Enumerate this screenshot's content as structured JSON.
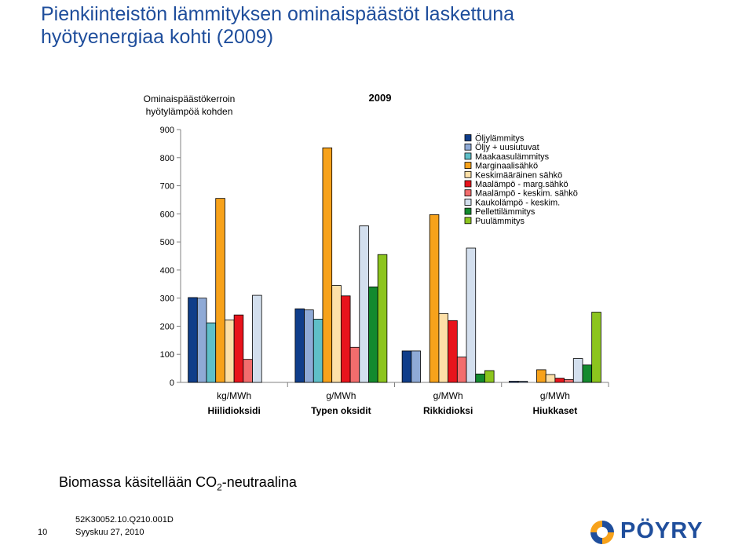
{
  "slide": {
    "title_line1": "Pienkiinteistön lämmityksen ominaispäästöt laskettuna",
    "title_line2": "hyötyenergiaa kohti (2009)",
    "note_prefix": "Biomassa käsitellään CO",
    "note_sub": "2",
    "note_suffix": "-neutraalina",
    "footer_code": "52K30052.10.Q210.001D",
    "footer_date": "Syyskuu 27, 2010",
    "page_number": "10",
    "logo_text": "PÖYRY",
    "logo_icon": "poyry-logo-icon"
  },
  "chart_data": {
    "type": "bar",
    "title": "2009",
    "ylabel_line1": "Ominaispäästökerroin",
    "ylabel_line2": "hyötylämpöä kohden",
    "ylim": [
      0,
      900
    ],
    "yticks": [
      0,
      100,
      200,
      300,
      400,
      500,
      600,
      700,
      800,
      900
    ],
    "grid": false,
    "legend_position": "top-right",
    "categories": [
      "Hiilidioksidi",
      "Typen oksidit",
      "Rikkidioksi",
      "Hiukkaset"
    ],
    "category_units": [
      "kg/MWh",
      "g/MWh",
      "g/MWh",
      "g/MWh"
    ],
    "series": [
      {
        "name": "Öljylämmitys",
        "color": "#0f3d8a",
        "values": [
          302,
          262,
          112,
          4
        ]
      },
      {
        "name": "Öljy + uusiutuvat",
        "color": "#8faad6",
        "values": [
          300,
          258,
          112,
          4
        ]
      },
      {
        "name": "Maakaasulämmitys",
        "color": "#5fbfc8",
        "values": [
          212,
          225,
          0,
          0
        ]
      },
      {
        "name": "Marginaalisähkö",
        "color": "#f7a21b",
        "values": [
          655,
          835,
          597,
          45
        ]
      },
      {
        "name": "Keskimääräinen sähkö",
        "color": "#fde0a8",
        "values": [
          222,
          345,
          245,
          28
        ]
      },
      {
        "name": "Maalämpö - marg.sähkö",
        "color": "#e8141c",
        "values": [
          240,
          308,
          220,
          15
        ]
      },
      {
        "name": "Maalämpö - keskim. sähkö",
        "color": "#f26d6d",
        "values": [
          82,
          125,
          90,
          10
        ]
      },
      {
        "name": "Kaukolämpö - keskim.",
        "color": "#d3dfee",
        "values": [
          310,
          557,
          478,
          85
        ]
      },
      {
        "name": "Pellettilämmitys",
        "color": "#138a2e",
        "values": [
          0,
          340,
          30,
          62
        ]
      },
      {
        "name": "Puulämmitys",
        "color": "#8cc51e",
        "values": [
          0,
          455,
          42,
          250
        ]
      }
    ]
  }
}
